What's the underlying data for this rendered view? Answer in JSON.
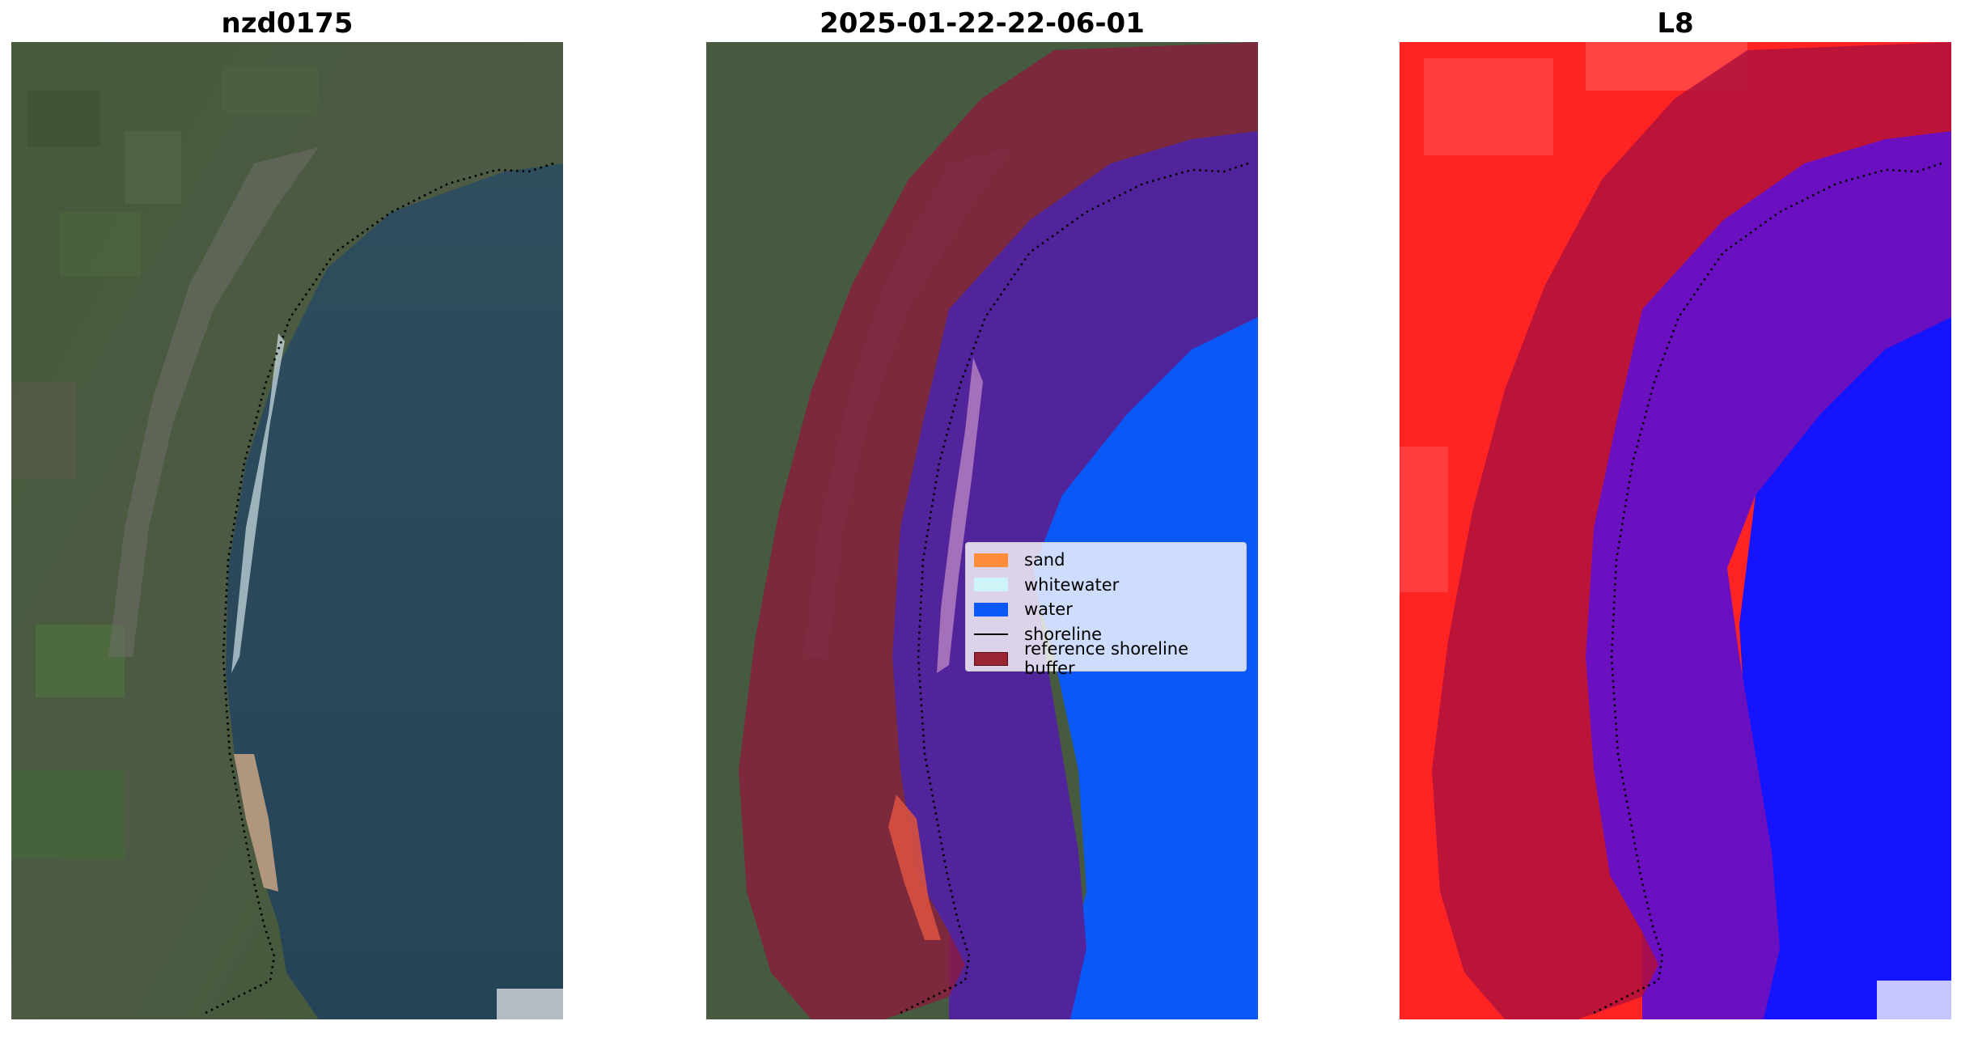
{
  "panels": [
    {
      "title": "nzd0175"
    },
    {
      "title": "2025-01-22-22-06-01"
    },
    {
      "title": "L8"
    }
  ],
  "legend": {
    "items": [
      {
        "label": "sand",
        "type": "patch",
        "color": "#ff8c3a"
      },
      {
        "label": "whitewater",
        "type": "patch",
        "color": "#cdf5f7"
      },
      {
        "label": "water",
        "type": "patch",
        "color": "#0a58f5"
      },
      {
        "label": "shoreline",
        "type": "line",
        "color": "#000000"
      },
      {
        "label": "reference shoreline buffer",
        "type": "patch",
        "color": "#9b2432"
      }
    ]
  },
  "colors": {
    "ocean_true_color": "#2c4a5c",
    "land_true_color": "#3f5b3a",
    "buffer_overlay": "#8c1a3c",
    "water_class": "#0a58f5",
    "land_index": "#ff2020",
    "water_index": "#1010ff"
  }
}
